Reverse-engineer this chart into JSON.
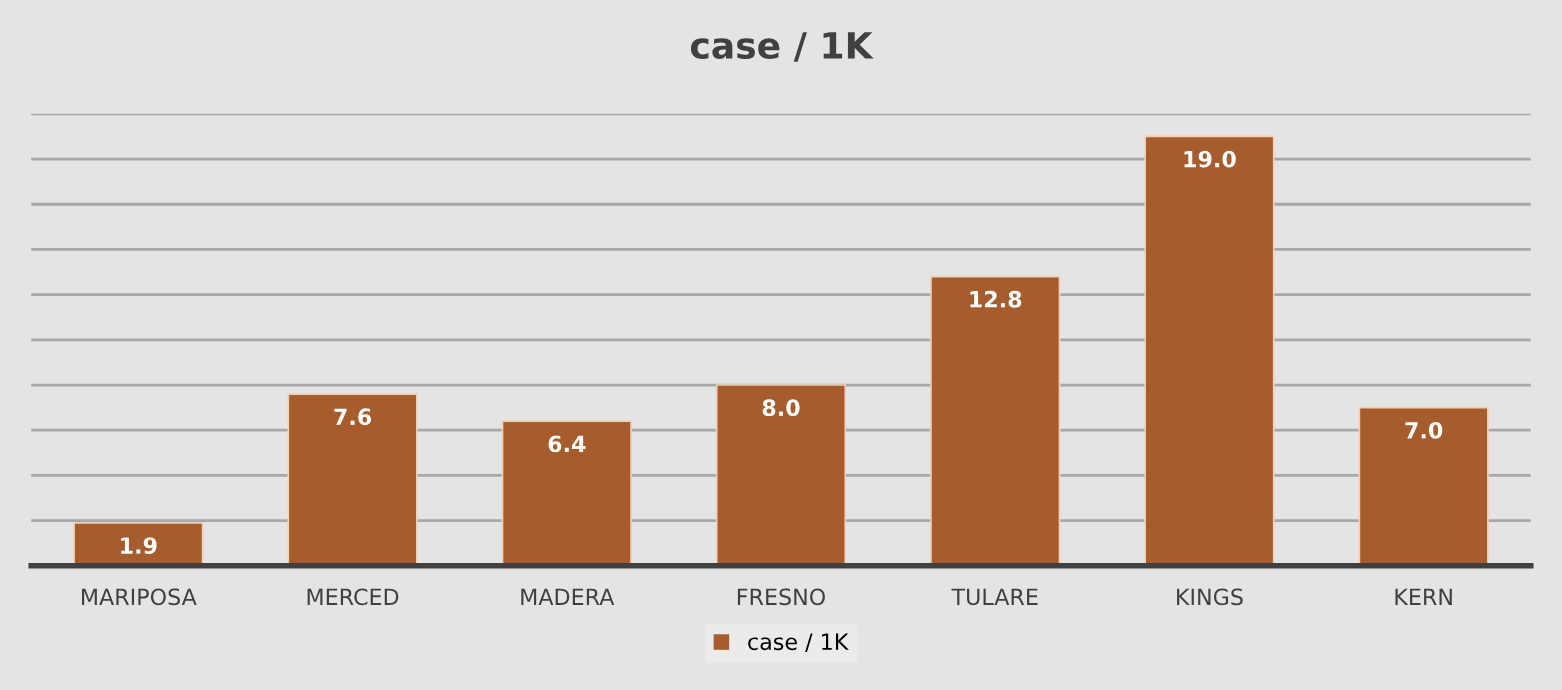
{
  "chart_data": {
    "type": "bar",
    "title": "case / 1K",
    "categories": [
      "MARIPOSA",
      "MERCED",
      "MADERA",
      "FRESNO",
      "TULARE",
      "KINGS",
      "KERN"
    ],
    "series": [
      {
        "name": "case / 1K",
        "color": "#a65c2d",
        "values": [
          1.9,
          7.6,
          6.4,
          8.0,
          12.8,
          19.0,
          7.0
        ],
        "value_labels": [
          "1.9",
          "7.6",
          "6.4",
          "8.0",
          "12.8",
          "19.0",
          "7.0"
        ]
      }
    ],
    "ylim": [
      0,
      20
    ],
    "yticks": [
      {
        "value": 0,
        "label": null
      },
      {
        "value": 2,
        "label": null
      },
      {
        "value": 4,
        "label": null
      },
      {
        "value": 6,
        "label": null
      },
      {
        "value": 8,
        "label": null
      },
      {
        "value": 10,
        "label": null
      },
      {
        "value": 12,
        "label": null
      },
      {
        "value": 14,
        "label": null
      },
      {
        "value": 16,
        "label": null
      },
      {
        "value": 18,
        "label": null
      },
      {
        "value": 20,
        "label": null
      }
    ],
    "grid": "y",
    "legend": "bottom"
  }
}
